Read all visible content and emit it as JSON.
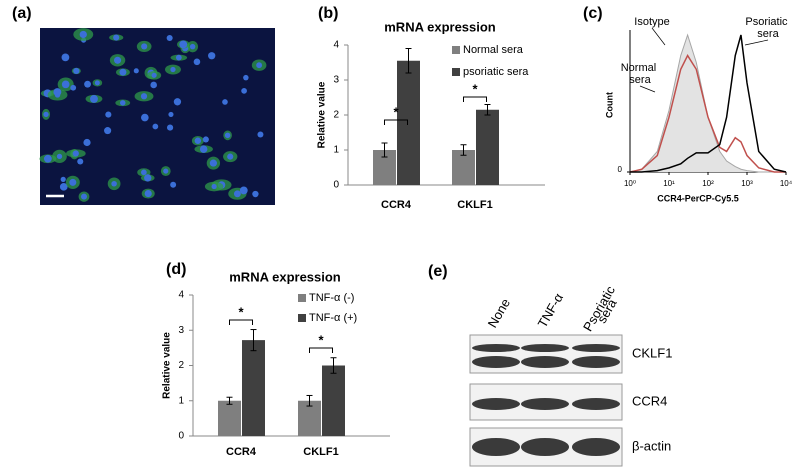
{
  "panels": [
    "(a)",
    "(b)",
    "(c)",
    "(d)",
    "(e)"
  ],
  "chart_data": [
    {
      "type": "bar",
      "title": "mRNA expression",
      "ylabel": "Relative value",
      "categories": [
        "CCR4",
        "CKLF1"
      ],
      "series": [
        {
          "name": "Normal sera",
          "color": "#7f7f7f",
          "values": [
            1.0,
            1.0
          ],
          "errors": [
            0.2,
            0.15
          ]
        },
        {
          "name": "psoriatic sera",
          "color": "#404040",
          "values": [
            3.55,
            2.15
          ],
          "errors": [
            0.35,
            0.15
          ]
        }
      ],
      "ylim": [
        0,
        4
      ],
      "yticks": [
        0,
        1,
        2,
        3,
        4
      ],
      "annotations": [
        "*",
        "*"
      ]
    },
    {
      "type": "line",
      "xlabel": "CCR4-PerCP-Cy5.5",
      "ylabel": "Count",
      "xscale": "log",
      "x": [
        1,
        2,
        5,
        10,
        20,
        30,
        50,
        100,
        200,
        300,
        500,
        700,
        1000,
        2000,
        5000,
        10000
      ],
      "series": [
        {
          "name": "Isotype",
          "color": "#a6a6a6",
          "fill": "#e3e3e3",
          "values": [
            0,
            2,
            15,
            45,
            85,
            100,
            80,
            40,
            15,
            8,
            4,
            2,
            1,
            0,
            0,
            0
          ]
        },
        {
          "name": "Normal sera",
          "color": "#c0504d",
          "values": [
            0,
            2,
            12,
            40,
            75,
            85,
            75,
            40,
            18,
            15,
            25,
            22,
            12,
            3,
            0,
            0
          ]
        },
        {
          "name": "Psoriatic sera",
          "color": "#000000",
          "values": [
            0,
            0,
            1,
            3,
            6,
            10,
            14,
            14,
            20,
            40,
            85,
            100,
            65,
            15,
            2,
            0
          ]
        }
      ],
      "xlim": [
        1,
        10000
      ],
      "xticks": [
        {
          "value": 1,
          "label": "10⁰"
        },
        {
          "value": 10,
          "label": "10¹"
        },
        {
          "value": 100,
          "label": "10²"
        },
        {
          "value": 1000,
          "label": "10³"
        },
        {
          "value": 10000,
          "label": "10⁴"
        }
      ],
      "ylim": [
        0,
        100
      ],
      "yticks": [
        0
      ]
    },
    {
      "type": "bar",
      "title": "mRNA expression",
      "ylabel": "Relative value",
      "categories": [
        "CCR4",
        "CKLF1"
      ],
      "series": [
        {
          "name": "TNF-α (-)",
          "color": "#7f7f7f",
          "values": [
            1.0,
            1.0
          ],
          "errors": [
            0.1,
            0.15
          ]
        },
        {
          "name": "TNF-α (+)",
          "color": "#404040",
          "values": [
            2.72,
            2.0
          ],
          "errors": [
            0.3,
            0.22
          ]
        }
      ],
      "ylim": [
        0,
        4
      ],
      "yticks": [
        0,
        1,
        2,
        3,
        4
      ],
      "annotations": [
        "*",
        "*"
      ]
    }
  ],
  "blot": {
    "lanes": [
      "None",
      "TNF-α",
      "Psoriatic sera"
    ],
    "proteins": [
      "CKLF1",
      "CCR4",
      "β-actin"
    ]
  }
}
